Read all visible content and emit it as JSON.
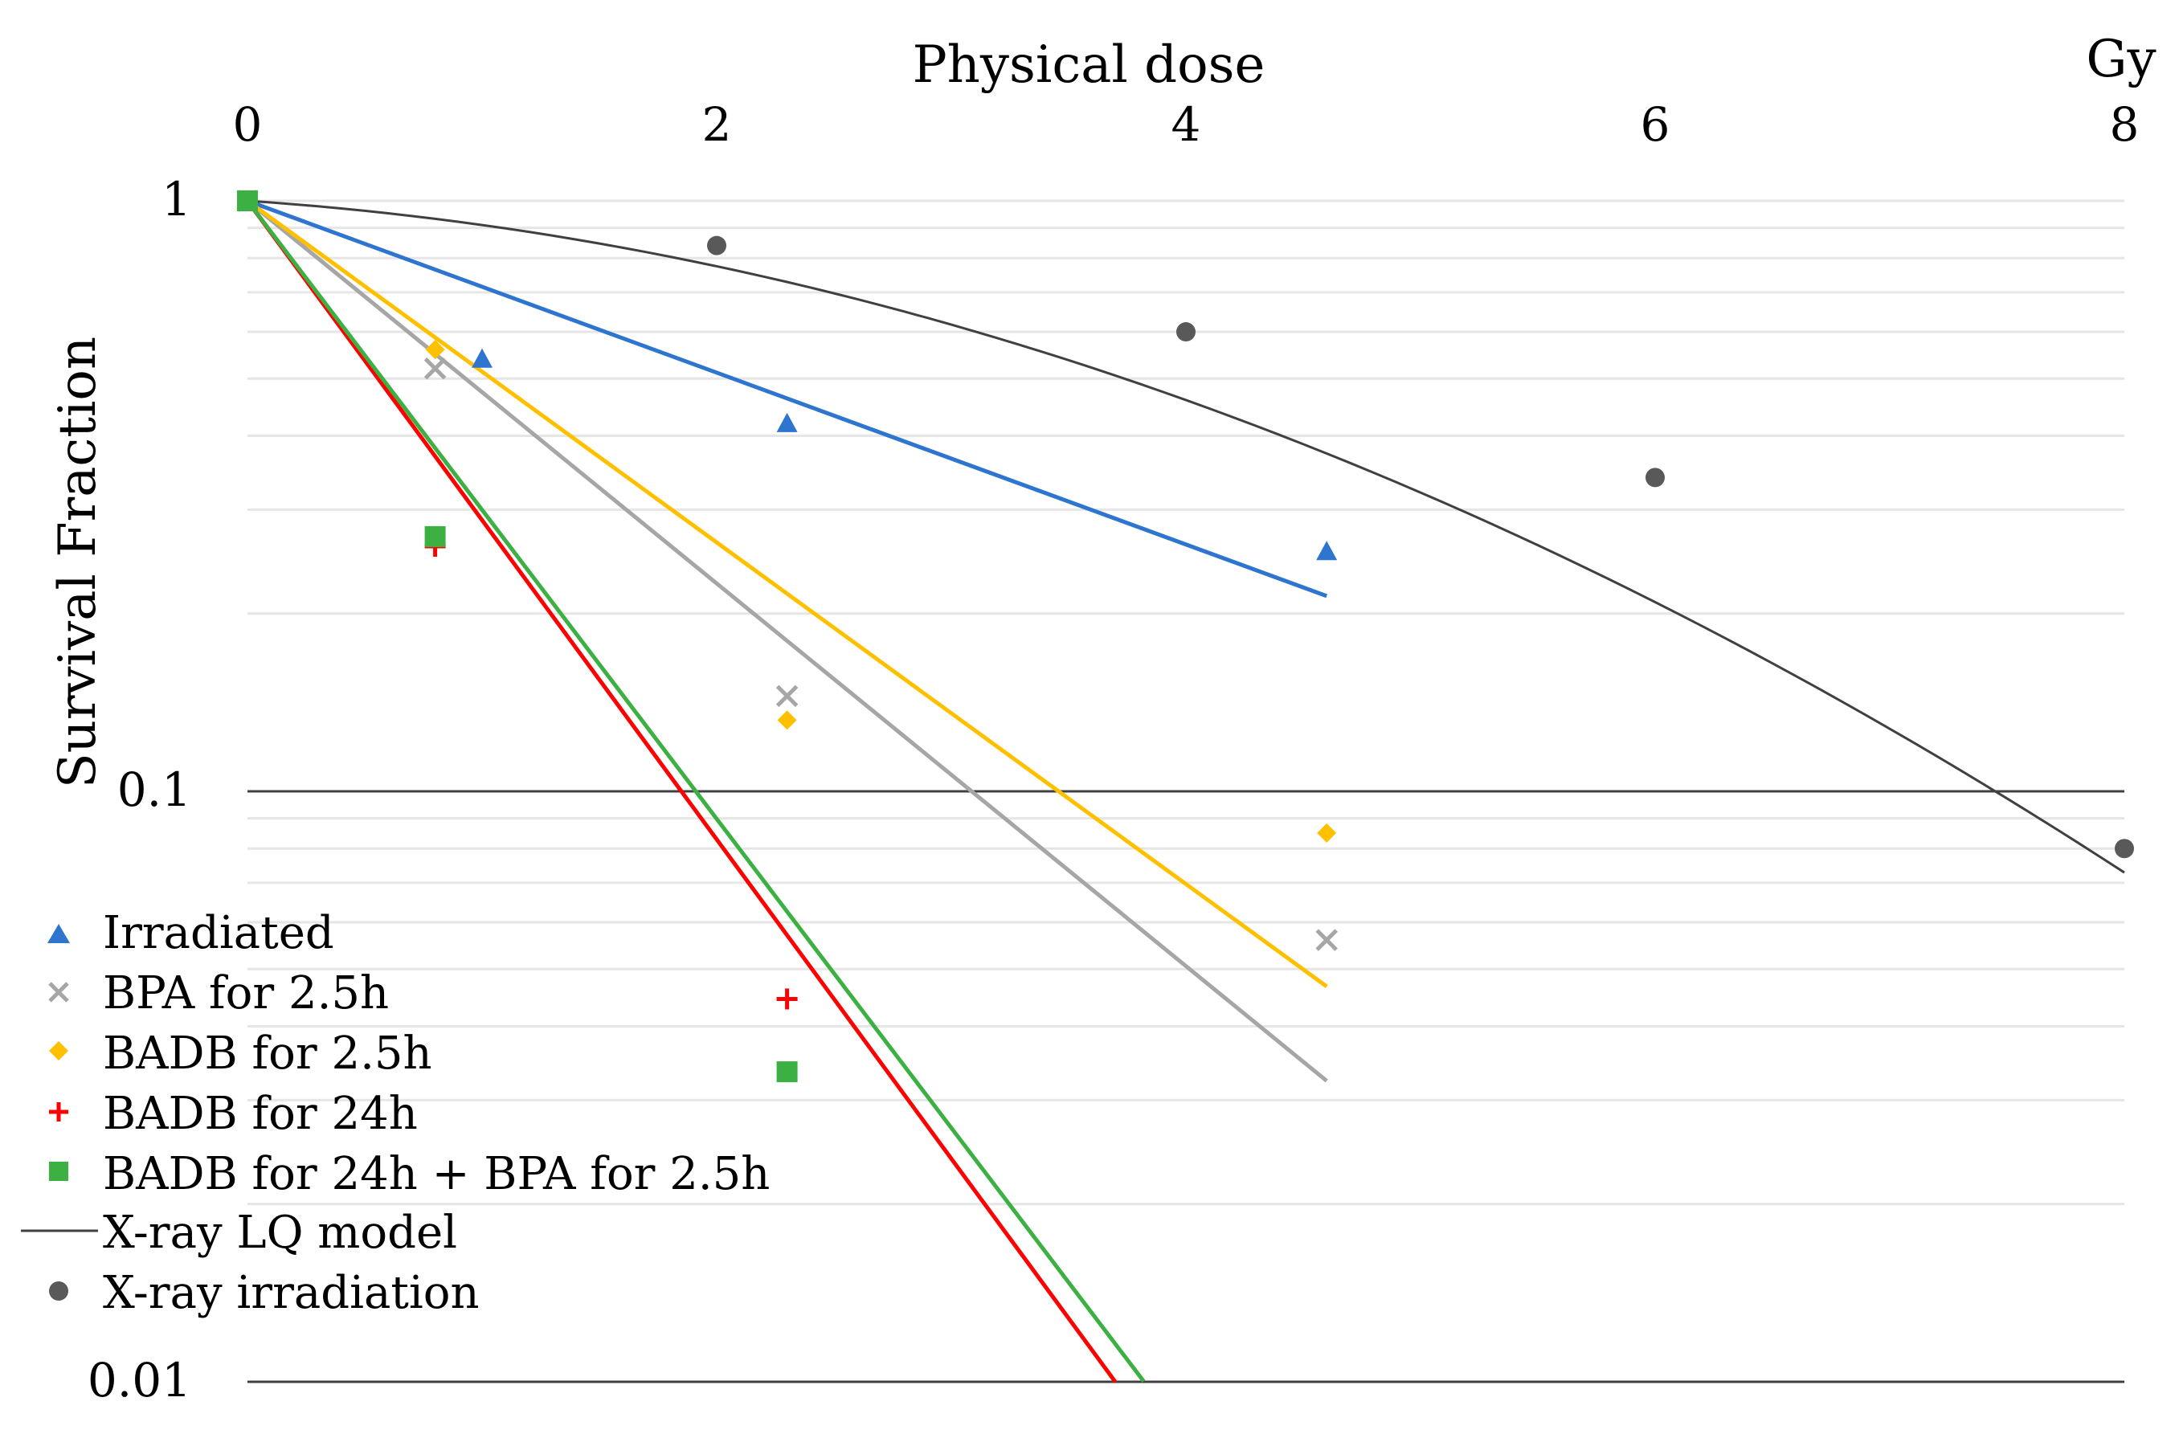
{
  "chart_data": {
    "type": "scatter",
    "title": "",
    "xlabel": "Physical dose",
    "xunit": "Gy",
    "ylabel": "Survival Fraction",
    "xlim": [
      0,
      8
    ],
    "ylim": [
      0.01,
      1
    ],
    "yscale": "log",
    "x_ticks": [
      "0",
      "2",
      "4",
      "6",
      "8"
    ],
    "y_ticks": [
      "1",
      "0.1",
      "0.01"
    ],
    "legend_position": "bottom-left",
    "series": [
      {
        "name": "Irradiated",
        "marker": "triangle",
        "color": "#2e75d0",
        "points": [
          [
            0,
            1.0
          ],
          [
            1.0,
            0.54
          ],
          [
            2.3,
            0.42
          ],
          [
            4.6,
            0.255
          ]
        ],
        "fit": {
          "type": "exponential",
          "alpha": 0.335,
          "x_end": 4.6
        }
      },
      {
        "name": "BPA for 2.5h",
        "marker": "x",
        "color": "#a6a6a6",
        "points": [
          [
            0,
            1.0
          ],
          [
            0.8,
            0.52
          ],
          [
            2.3,
            0.145
          ],
          [
            4.6,
            0.056
          ]
        ],
        "fit": {
          "type": "exponential",
          "alpha": 0.746,
          "x_end": 4.6
        }
      },
      {
        "name": "BADB for 2.5h",
        "marker": "diamond",
        "color": "#ffc000",
        "points": [
          [
            0,
            1.0
          ],
          [
            0.8,
            0.56
          ],
          [
            2.3,
            0.132
          ],
          [
            4.6,
            0.085
          ]
        ],
        "fit": {
          "type": "exponential",
          "alpha": 0.666,
          "x_end": 4.6
        }
      },
      {
        "name": "BADB for 24h",
        "marker": "plus",
        "color": "#ff0000",
        "points": [
          [
            0,
            1.0
          ],
          [
            0.8,
            0.26
          ],
          [
            2.3,
            0.0445
          ]
        ],
        "fit": {
          "type": "exponential",
          "alpha": 1.245,
          "x_end": 3.7
        }
      },
      {
        "name": "BADB for 24h + BPA for 2.5h",
        "marker": "square",
        "color": "#3cb043",
        "points": [
          [
            0,
            1.0
          ],
          [
            0.8,
            0.27
          ],
          [
            2.3,
            0.0335
          ]
        ],
        "fit": {
          "type": "exponential",
          "alpha": 1.205,
          "x_end": 3.82
        }
      },
      {
        "name": "X-ray LQ model",
        "marker": "line",
        "color": "#404040",
        "lq": {
          "alpha": 0.061,
          "beta": 0.0333,
          "x_end": 8
        }
      },
      {
        "name": "X-ray irradiation",
        "marker": "circle",
        "color": "#595959",
        "points": [
          [
            0,
            1.0
          ],
          [
            2,
            0.84
          ],
          [
            4,
            0.6
          ],
          [
            6,
            0.34
          ],
          [
            8,
            0.08
          ]
        ]
      }
    ]
  }
}
